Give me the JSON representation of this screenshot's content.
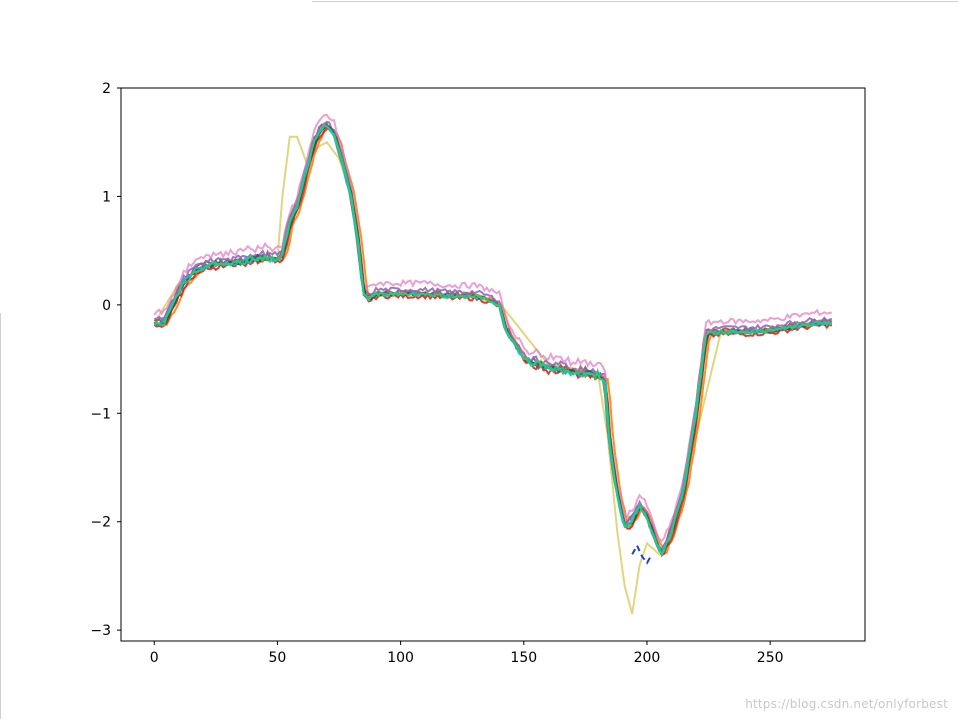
{
  "watermark": "https://blog.csdn.net/onlyforbest",
  "chart_data": {
    "type": "line",
    "title": "",
    "xlabel": "",
    "ylabel": "",
    "xlim": [
      -13.5,
      288.5
    ],
    "ylim": [
      -3.1,
      2.0
    ],
    "xticks": [
      0,
      50,
      100,
      150,
      200,
      250
    ],
    "yticks": [
      2,
      1,
      0,
      -1,
      -2,
      -3
    ],
    "xtick_labels": [
      "0",
      "50",
      "100",
      "150",
      "200",
      "250"
    ],
    "ytick_labels": [
      "2",
      "1",
      "0",
      "−1",
      "−2",
      "−3"
    ],
    "grid": false,
    "legend": "none",
    "base_curve": {
      "x": [
        0,
        4,
        8,
        12,
        16,
        20,
        25,
        30,
        35,
        40,
        45,
        50,
        52,
        55,
        58,
        62,
        65,
        68,
        70,
        73,
        76,
        80,
        83,
        85,
        87,
        90,
        95,
        100,
        110,
        120,
        130,
        135,
        140,
        143,
        146,
        150,
        155,
        160,
        170,
        180,
        183,
        185,
        188,
        191,
        194,
        197,
        200,
        203,
        206,
        210,
        215,
        220,
        224,
        230,
        240,
        250,
        260,
        270,
        275
      ],
      "y": [
        -0.17,
        -0.17,
        0.02,
        0.2,
        0.3,
        0.35,
        0.38,
        0.38,
        0.4,
        0.42,
        0.44,
        0.42,
        0.45,
        0.75,
        0.9,
        1.25,
        1.5,
        1.62,
        1.65,
        1.58,
        1.35,
        1.0,
        0.55,
        0.1,
        0.05,
        0.1,
        0.1,
        0.1,
        0.1,
        0.08,
        0.08,
        0.05,
        0.0,
        -0.25,
        -0.35,
        -0.5,
        -0.55,
        -0.58,
        -0.62,
        -0.65,
        -0.7,
        -1.3,
        -1.75,
        -2.05,
        -2.0,
        -1.85,
        -1.95,
        -2.15,
        -2.3,
        -2.1,
        -1.7,
        -1.0,
        -0.27,
        -0.25,
        -0.25,
        -0.24,
        -0.2,
        -0.17,
        -0.17
      ]
    },
    "series": [
      {
        "color": "#1f77b4",
        "dy": 0.0,
        "dx": 0.0,
        "jitter": 0.015
      },
      {
        "color": "#ff7f0e",
        "dy": 0.0,
        "dx": 1.5,
        "jitter": 0.02
      },
      {
        "color": "#d62728",
        "dy": -0.02,
        "dx": 0.5,
        "jitter": 0.02
      },
      {
        "color": "#8c564b",
        "dy": 0.02,
        "dx": -0.5,
        "jitter": 0.02
      },
      {
        "color": "#9467bd",
        "dy": 0.04,
        "dx": 0.0,
        "jitter": 0.02
      },
      {
        "color": "#e377c2",
        "dy": 0.1,
        "dx": 0.0,
        "jitter": 0.025,
        "alpha": 0.7
      },
      {
        "color": "#2f4f4f",
        "dy": 0.0,
        "dx": 0.3,
        "jitter": 0.012
      },
      {
        "color": "#17becf",
        "dy": 0.0,
        "dx": -0.3,
        "jitter": 0.015
      },
      {
        "color": "#2ecc71",
        "dy": 0.0,
        "dx": 0.0,
        "jitter": 0.018
      }
    ],
    "outlier_series": {
      "color": "#d8cf6a",
      "x": [
        0,
        10,
        20,
        30,
        40,
        50,
        52,
        55,
        58,
        62,
        66,
        70,
        75,
        80,
        85,
        90,
        100,
        120,
        140,
        160,
        180,
        184,
        188,
        191,
        194,
        197,
        200,
        205,
        210,
        220,
        230,
        250,
        275
      ],
      "y": [
        -0.17,
        0.2,
        0.35,
        0.38,
        0.4,
        0.42,
        1.0,
        1.55,
        1.55,
        1.3,
        1.45,
        1.5,
        1.35,
        1.0,
        0.1,
        0.08,
        0.1,
        0.1,
        0.02,
        -0.55,
        -0.62,
        -1.2,
        -2.1,
        -2.6,
        -2.85,
        -2.4,
        -2.2,
        -2.3,
        -2.15,
        -1.2,
        -0.25,
        -0.22,
        -0.17
      ]
    },
    "dashed_segment": {
      "color": "#1f3fd8",
      "x": [
        194,
        196,
        198,
        200,
        202
      ],
      "y": [
        -2.3,
        -2.22,
        -2.32,
        -2.38,
        -2.3
      ]
    }
  }
}
